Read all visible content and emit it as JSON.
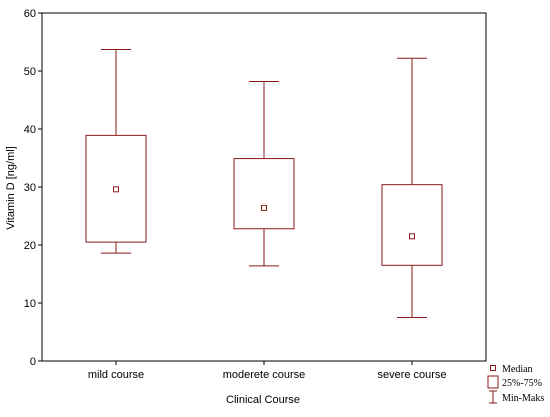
{
  "chart_data": {
    "type": "boxplot",
    "xlabel": "Clinical Course",
    "ylabel": "Vitamin D [ng/ml]",
    "ylim": [
      0,
      60
    ],
    "yticks": [
      0,
      10,
      20,
      30,
      40,
      50,
      60
    ],
    "grid": false,
    "legend_position": "bottom-right",
    "categories": [
      "mild course",
      "moderete course",
      "severe course"
    ],
    "series": [
      {
        "category": "mild course",
        "median": 29.6,
        "q1": 20.5,
        "q3": 38.9,
        "min": 18.6,
        "max": 53.7
      },
      {
        "category": "moderete course",
        "median": 26.4,
        "q1": 22.8,
        "q3": 34.9,
        "min": 16.4,
        "max": 48.2
      },
      {
        "category": "severe course",
        "median": 21.5,
        "q1": 16.5,
        "q3": 30.4,
        "min": 7.5,
        "max": 52.2
      }
    ],
    "legend": [
      {
        "key": "median",
        "label": "Median"
      },
      {
        "key": "box",
        "label": "25%-75%"
      },
      {
        "key": "whisker",
        "label": "Min-Maks"
      }
    ],
    "colors": {
      "box": "#8b1a1a",
      "axis": "#000000"
    }
  }
}
